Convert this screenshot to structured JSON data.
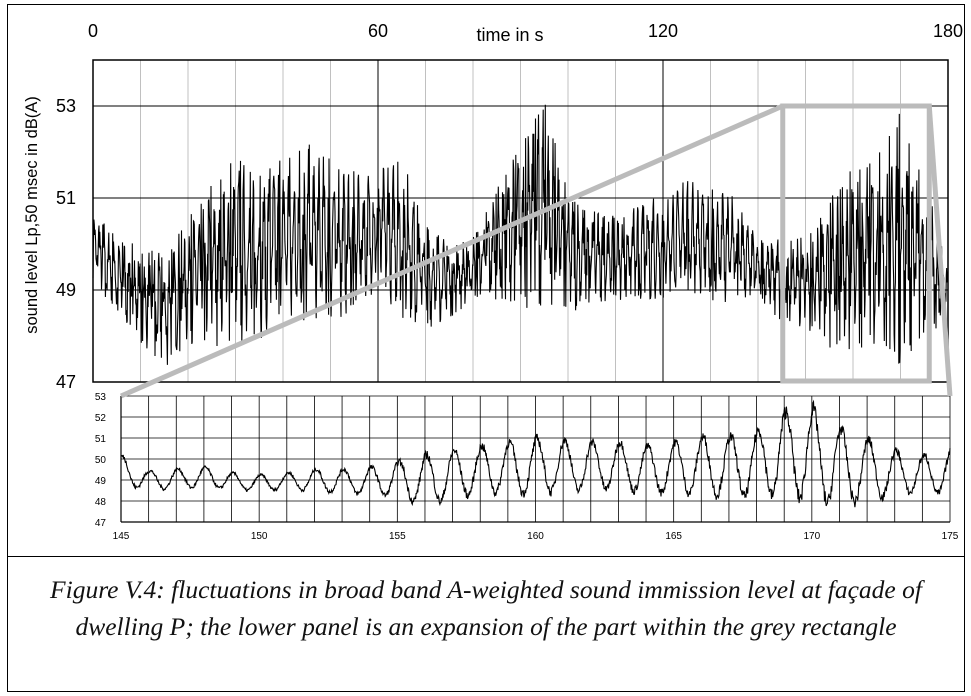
{
  "caption": "Figure V.4: fluctuations in broad band A-weighted sound immission level at façade of dwelling P; the lower panel is an expansion of the part within the grey rectangle",
  "chart_data": [
    {
      "type": "line",
      "panel": "upper",
      "xlabel": "time in s",
      "ylabel": "sound level Lp,50 msec in dB(A)",
      "xlim": [
        0,
        180
      ],
      "ylim": [
        47,
        54
      ],
      "xticks": [
        0,
        60,
        120,
        180
      ],
      "yticks": [
        47,
        49,
        51,
        53
      ],
      "x_axis_position": "top",
      "grid": true,
      "series_color": "#000000",
      "highlight_rect": {
        "x0": 145,
        "x1": 175,
        "y0": 47,
        "y1": 53,
        "color": "#bbbbbb"
      },
      "envelope": {
        "x": [
          0,
          5,
          10,
          15,
          20,
          25,
          30,
          35,
          40,
          45,
          50,
          55,
          60,
          65,
          70,
          75,
          80,
          85,
          90,
          95,
          100,
          105,
          110,
          115,
          120,
          125,
          130,
          135,
          140,
          145,
          150,
          155,
          160,
          165,
          170,
          175,
          180
        ],
        "max": [
          50.8,
          50.2,
          50.0,
          49.8,
          50.6,
          51.4,
          51.9,
          51.6,
          51.9,
          52.2,
          51.9,
          51.6,
          51.7,
          51.9,
          50.6,
          50.0,
          50.2,
          51.2,
          52.2,
          53.2,
          51.2,
          50.8,
          50.6,
          50.9,
          51.1,
          51.4,
          51.2,
          51.1,
          50.1,
          50.3,
          50.1,
          51.0,
          51.7,
          51.9,
          52.9,
          51.4,
          49.7
        ],
        "min": [
          49.2,
          48.4,
          47.8,
          47.3,
          47.8,
          47.7,
          47.8,
          47.9,
          48.4,
          48.2,
          48.3,
          48.5,
          49.0,
          48.4,
          48.1,
          48.4,
          48.7,
          48.8,
          48.6,
          48.6,
          48.5,
          48.6,
          48.8,
          48.7,
          48.8,
          49.0,
          48.6,
          48.7,
          48.8,
          48.2,
          48.2,
          47.7,
          47.6,
          47.8,
          47.3,
          47.9,
          48.2
        ]
      }
    },
    {
      "type": "line",
      "panel": "lower",
      "xlim": [
        145,
        175
      ],
      "ylim": [
        47,
        53
      ],
      "xticks": [
        145,
        150,
        155,
        160,
        165,
        170,
        175
      ],
      "yticks": [
        47,
        48,
        49,
        50,
        51,
        52,
        53
      ],
      "grid": true,
      "series_color": "#000000",
      "envelope": {
        "x": [
          145,
          146,
          147,
          148,
          149,
          150,
          151,
          152,
          153,
          154,
          155,
          156,
          157,
          158,
          159,
          160,
          161,
          162,
          163,
          164,
          165,
          166,
          167,
          168,
          169,
          170,
          171,
          172,
          173,
          174,
          175
        ],
        "max": [
          50.3,
          49.5,
          49.6,
          49.7,
          49.4,
          49.3,
          49.4,
          49.6,
          49.6,
          49.7,
          50.0,
          50.4,
          50.6,
          50.8,
          51.0,
          51.2,
          51.1,
          51.0,
          51.0,
          50.8,
          51.0,
          51.3,
          51.3,
          51.6,
          52.6,
          52.8,
          51.8,
          51.2,
          50.6,
          50.3,
          50.6
        ],
        "min": [
          48.6,
          48.5,
          48.5,
          48.6,
          48.5,
          48.4,
          48.5,
          48.4,
          48.3,
          48.2,
          48.1,
          47.6,
          47.9,
          48.2,
          48.2,
          48.1,
          48.3,
          48.3,
          48.4,
          48.2,
          48.2,
          48.1,
          48.0,
          47.9,
          48.0,
          47.6,
          47.5,
          47.8,
          48.1,
          48.3,
          48.1
        ]
      }
    }
  ]
}
